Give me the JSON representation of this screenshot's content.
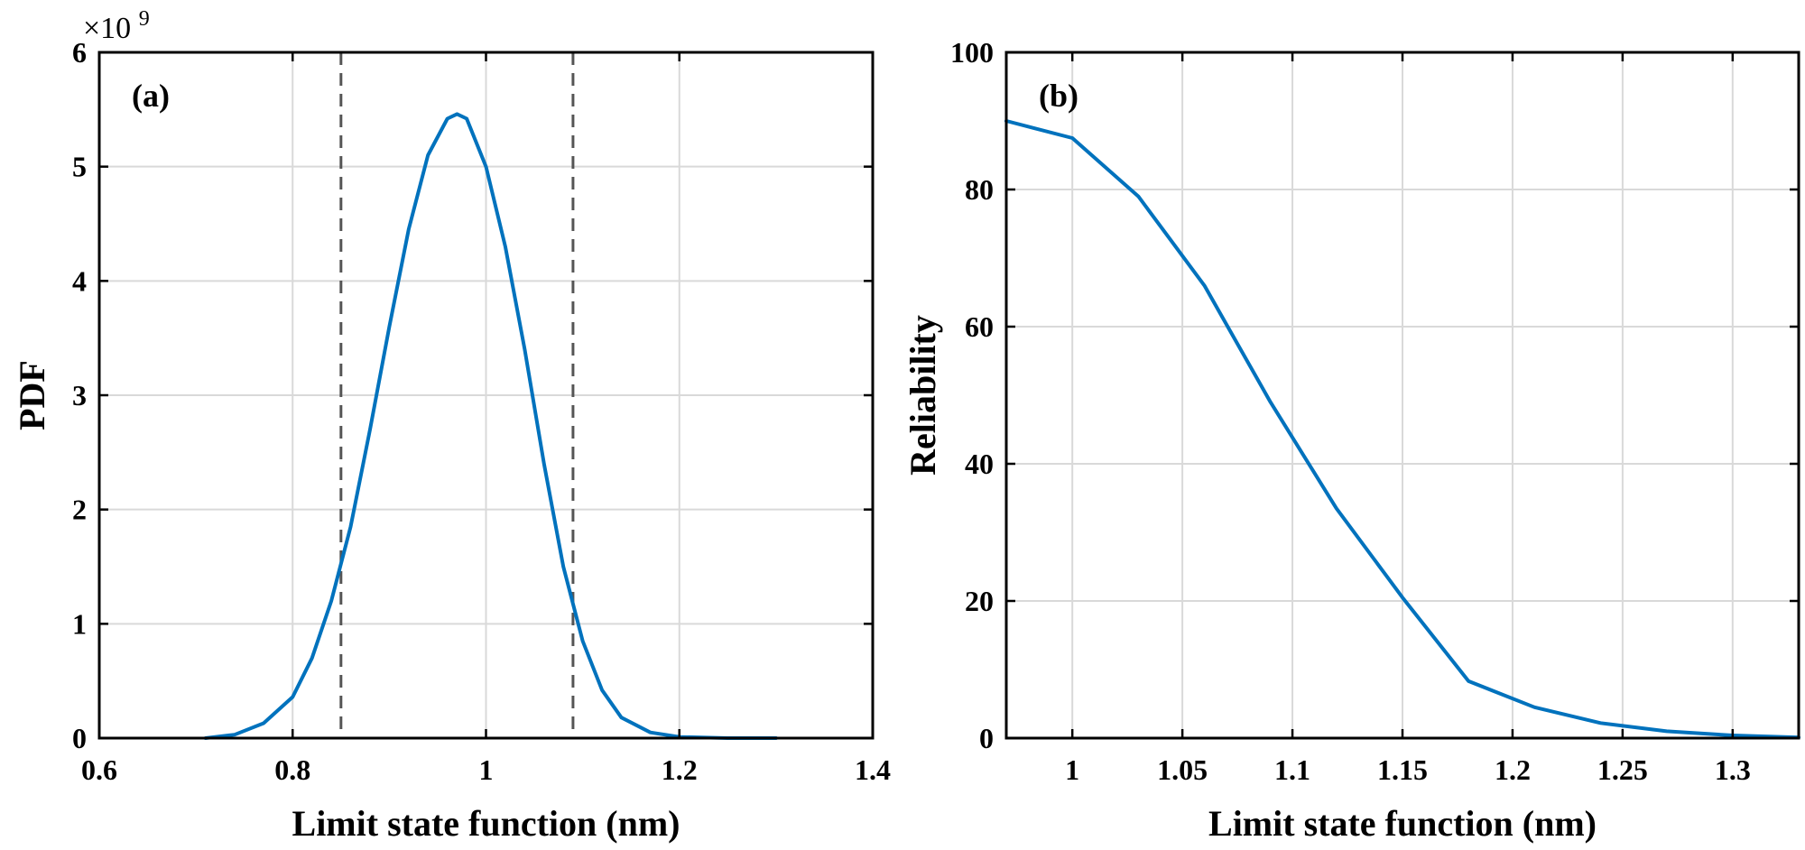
{
  "chart_data": [
    {
      "type": "line",
      "panel_label": "(a)",
      "xlabel": "Limit state function (nm)",
      "ylabel": "PDF",
      "y_exponent_base": "×10",
      "y_exponent_power": "9",
      "xlim": [
        0.6,
        1.4
      ],
      "ylim": [
        0,
        6
      ],
      "xticks": [
        0.6,
        0.8,
        1.0,
        1.2,
        1.4
      ],
      "xtick_labels": [
        "0.6",
        "0.8",
        "1",
        "1.2",
        "1.4"
      ],
      "yticks": [
        0,
        1,
        2,
        3,
        4,
        5,
        6
      ],
      "ytick_labels": [
        "0",
        "1",
        "2",
        "3",
        "4",
        "5",
        "6"
      ],
      "grid": true,
      "y_unit_scale": 1000000000,
      "series": [
        {
          "color": "#0072BD",
          "x": [
            0.71,
            0.74,
            0.77,
            0.8,
            0.82,
            0.84,
            0.86,
            0.88,
            0.9,
            0.92,
            0.94,
            0.96,
            0.97,
            0.98,
            1.0,
            1.02,
            1.04,
            1.06,
            1.08,
            1.1,
            1.12,
            1.14,
            1.17,
            1.2,
            1.25,
            1.3
          ],
          "y": [
            0.0,
            0.03,
            0.13,
            0.36,
            0.7,
            1.2,
            1.85,
            2.7,
            3.6,
            4.45,
            5.1,
            5.42,
            5.46,
            5.42,
            5.0,
            4.3,
            3.4,
            2.4,
            1.5,
            0.85,
            0.42,
            0.18,
            0.05,
            0.01,
            0.0,
            0.0
          ]
        }
      ],
      "reference_lines": [
        {
          "axis": "x",
          "value": 0.85,
          "style": "dashed",
          "color": "#555555"
        },
        {
          "axis": "x",
          "value": 1.09,
          "style": "dashed",
          "color": "#555555"
        }
      ]
    },
    {
      "type": "line",
      "panel_label": "(b)",
      "xlabel": "Limit state function (nm)",
      "ylabel": "Reliability",
      "xlim": [
        0.97,
        1.33
      ],
      "ylim": [
        0,
        100
      ],
      "xticks": [
        1.0,
        1.05,
        1.1,
        1.15,
        1.2,
        1.25,
        1.3
      ],
      "xtick_labels": [
        "1",
        "1.05",
        "1.1",
        "1.15",
        "1.2",
        "1.25",
        "1.3"
      ],
      "yticks": [
        0,
        20,
        40,
        60,
        80,
        100
      ],
      "ytick_labels": [
        "0",
        "20",
        "40",
        "60",
        "80",
        "100"
      ],
      "grid": true,
      "series": [
        {
          "color": "#0072BD",
          "x": [
            0.97,
            1.0,
            1.03,
            1.06,
            1.09,
            1.12,
            1.15,
            1.18,
            1.21,
            1.24,
            1.27,
            1.3,
            1.33
          ],
          "y": [
            90.0,
            87.5,
            79.0,
            66.0,
            49.0,
            33.5,
            20.5,
            8.3,
            4.5,
            2.2,
            1.0,
            0.4,
            0.1
          ]
        }
      ]
    }
  ]
}
